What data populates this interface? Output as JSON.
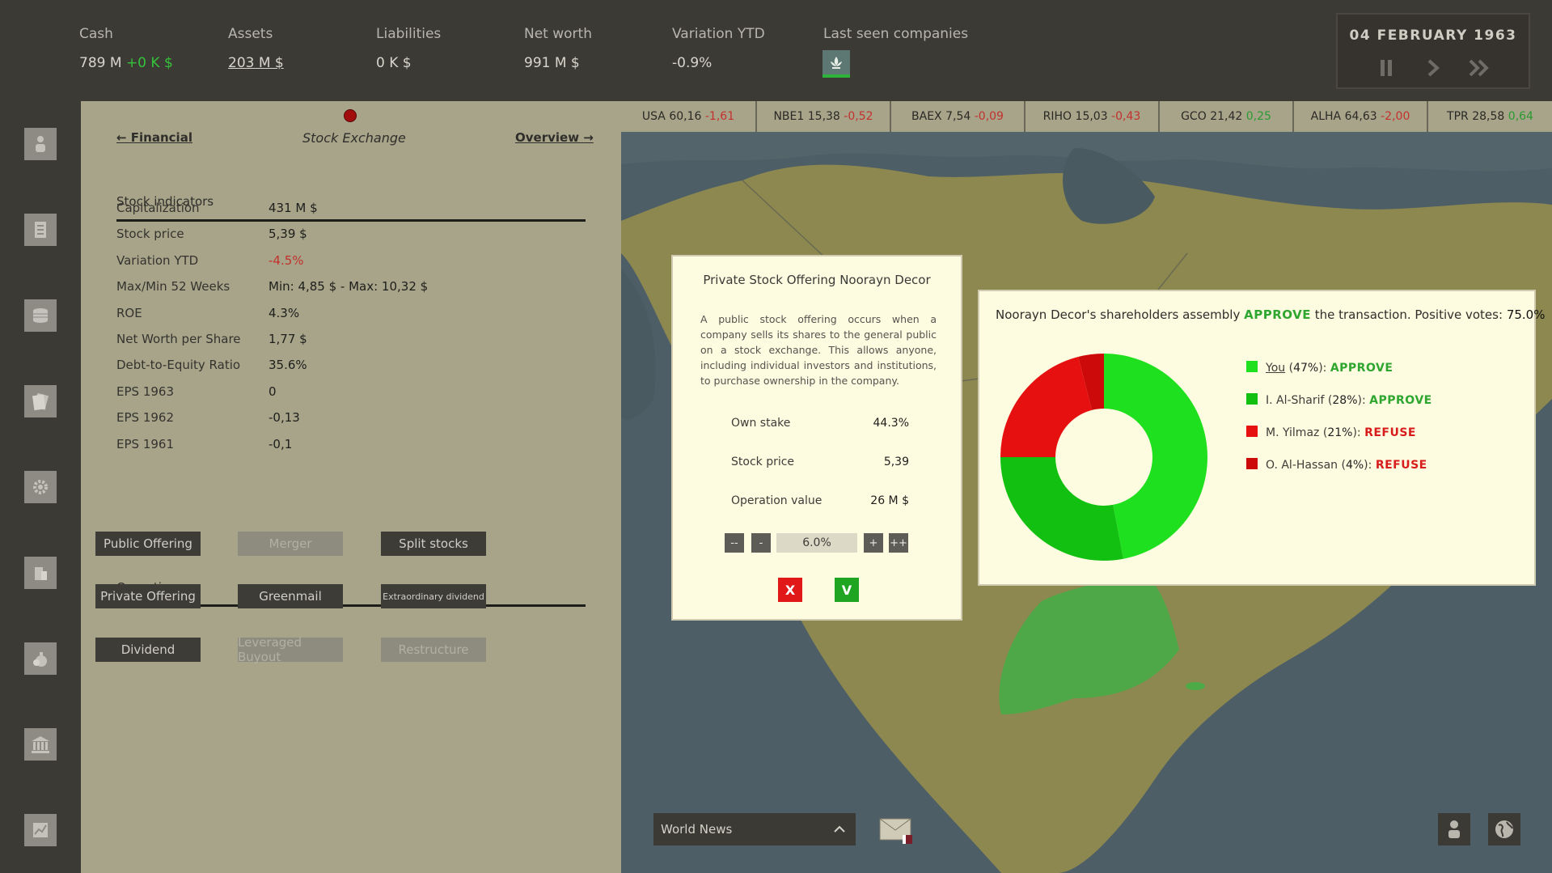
{
  "top": {
    "cash": {
      "label": "Cash",
      "value": "789 M",
      "delta": "+0 K $"
    },
    "assets": {
      "label": "Assets",
      "value": "203 M $"
    },
    "liabilities": {
      "label": "Liabilities",
      "value": "0 K $"
    },
    "net_worth": {
      "label": "Net worth",
      "value": "991 M $"
    },
    "variation": {
      "label": "Variation YTD",
      "value": "-0.9%"
    },
    "last_seen": {
      "label": "Last seen companies"
    },
    "date": "04 FEBRUARY 1963"
  },
  "sidebar": {
    "icons": [
      "person-icon",
      "document-icon",
      "coins-icon",
      "papers-icon",
      "gear-icon",
      "building-icon",
      "money-bag-icon",
      "bank-icon",
      "chart-icon"
    ]
  },
  "panel": {
    "nav_prev": "← Financial",
    "nav_title": "Stock Exchange",
    "nav_next": "Overview →",
    "indicators_title": "Stock indicators",
    "indicators": [
      {
        "label": "Capitalization",
        "value": "431 M $"
      },
      {
        "label": "Stock price",
        "value": "5,39 $"
      },
      {
        "label": "Variation YTD",
        "value": "-4.5%"
      },
      {
        "label": "Max/Min 52 Weeks",
        "value": "Min: 4,85 $ - Max: 10,32 $"
      },
      {
        "label": "ROE",
        "value": "4.3%"
      },
      {
        "label": "Net Worth per Share",
        "value": "1,77 $"
      },
      {
        "label": "Debt-to-Equity Ratio",
        "value": "35.6%"
      },
      {
        "label": "EPS 1963",
        "value": "0"
      },
      {
        "label": "EPS 1962",
        "value": "-0,13"
      },
      {
        "label": "EPS 1961",
        "value": "-0,1"
      }
    ],
    "operations_title": "Operations",
    "operations": [
      {
        "label": "Public Offering",
        "enabled": true
      },
      {
        "label": "Merger",
        "enabled": false
      },
      {
        "label": "Split stocks",
        "enabled": true
      },
      {
        "label": "Private Offering",
        "enabled": true
      },
      {
        "label": "Greenmail",
        "enabled": true
      },
      {
        "label": "Extraordinary dividend",
        "enabled": true
      },
      {
        "label": "Dividend",
        "enabled": true
      },
      {
        "label": "Leveraged Buyout",
        "enabled": false
      },
      {
        "label": "Restructure",
        "enabled": false
      }
    ]
  },
  "ticker": [
    {
      "sym": "USA",
      "price": "60,16",
      "chg": "-1,61",
      "dir": "neg"
    },
    {
      "sym": "NBE1",
      "price": "15,38",
      "chg": "-0,52",
      "dir": "neg"
    },
    {
      "sym": "BAEX",
      "price": "7,54",
      "chg": "-0,09",
      "dir": "neg"
    },
    {
      "sym": "RIHO",
      "price": "15,03",
      "chg": "-0,43",
      "dir": "neg"
    },
    {
      "sym": "GCO",
      "price": "21,42",
      "chg": "0,25",
      "dir": "pos"
    },
    {
      "sym": "ALHA",
      "price": "64,63",
      "chg": "-2,00",
      "dir": "neg"
    },
    {
      "sym": "TPR",
      "price": "28,58",
      "chg": "0,64",
      "dir": "pos"
    }
  ],
  "offering": {
    "title": "Private Stock Offering Noorayn Decor",
    "description": "A public stock offering occurs when a company sells its shares to the general public on a stock exchange. This allows anyone, including individual investors and institutions, to purchase ownership in the company.",
    "own_stake_label": "Own stake",
    "own_stake": "44.3%",
    "price_label": "Stock price",
    "price": "5,39",
    "op_value_label": "Operation value",
    "op_value": "26 M $",
    "step_dec2": "--",
    "step_dec": "-",
    "percent": "6.0%",
    "step_inc": "+",
    "step_inc2": "++",
    "cancel": "X",
    "confirm": "V"
  },
  "vote": {
    "head_prefix": "Noorayn Decor's shareholders assembly",
    "head_result": "APPROVE",
    "head_mid": "the transaction. Positive votes:",
    "head_pct": "75.0%",
    "shareholders": [
      {
        "name": "You",
        "pct": "47%",
        "vote": "APPROVE",
        "color": "#1ee01e"
      },
      {
        "name": "I. Al-Sharif",
        "pct": "28%",
        "vote": "APPROVE",
        "color": "#12c012"
      },
      {
        "name": "M. Yilmaz",
        "pct": "21%",
        "vote": "REFUSE",
        "color": "#e61010"
      },
      {
        "name": "O. Al-Hassan",
        "pct": "4%",
        "vote": "REFUSE",
        "color": "#cc0a0a"
      }
    ]
  },
  "chart_data": {
    "type": "pie",
    "categories": [
      "You",
      "I. Al-Sharif",
      "M. Yilmaz",
      "O. Al-Hassan"
    ],
    "values": [
      47,
      28,
      21,
      4
    ],
    "colors": [
      "#1ee01e",
      "#12c012",
      "#e61010",
      "#cc0a0a"
    ]
  },
  "bottom": {
    "news_label": "World News"
  }
}
